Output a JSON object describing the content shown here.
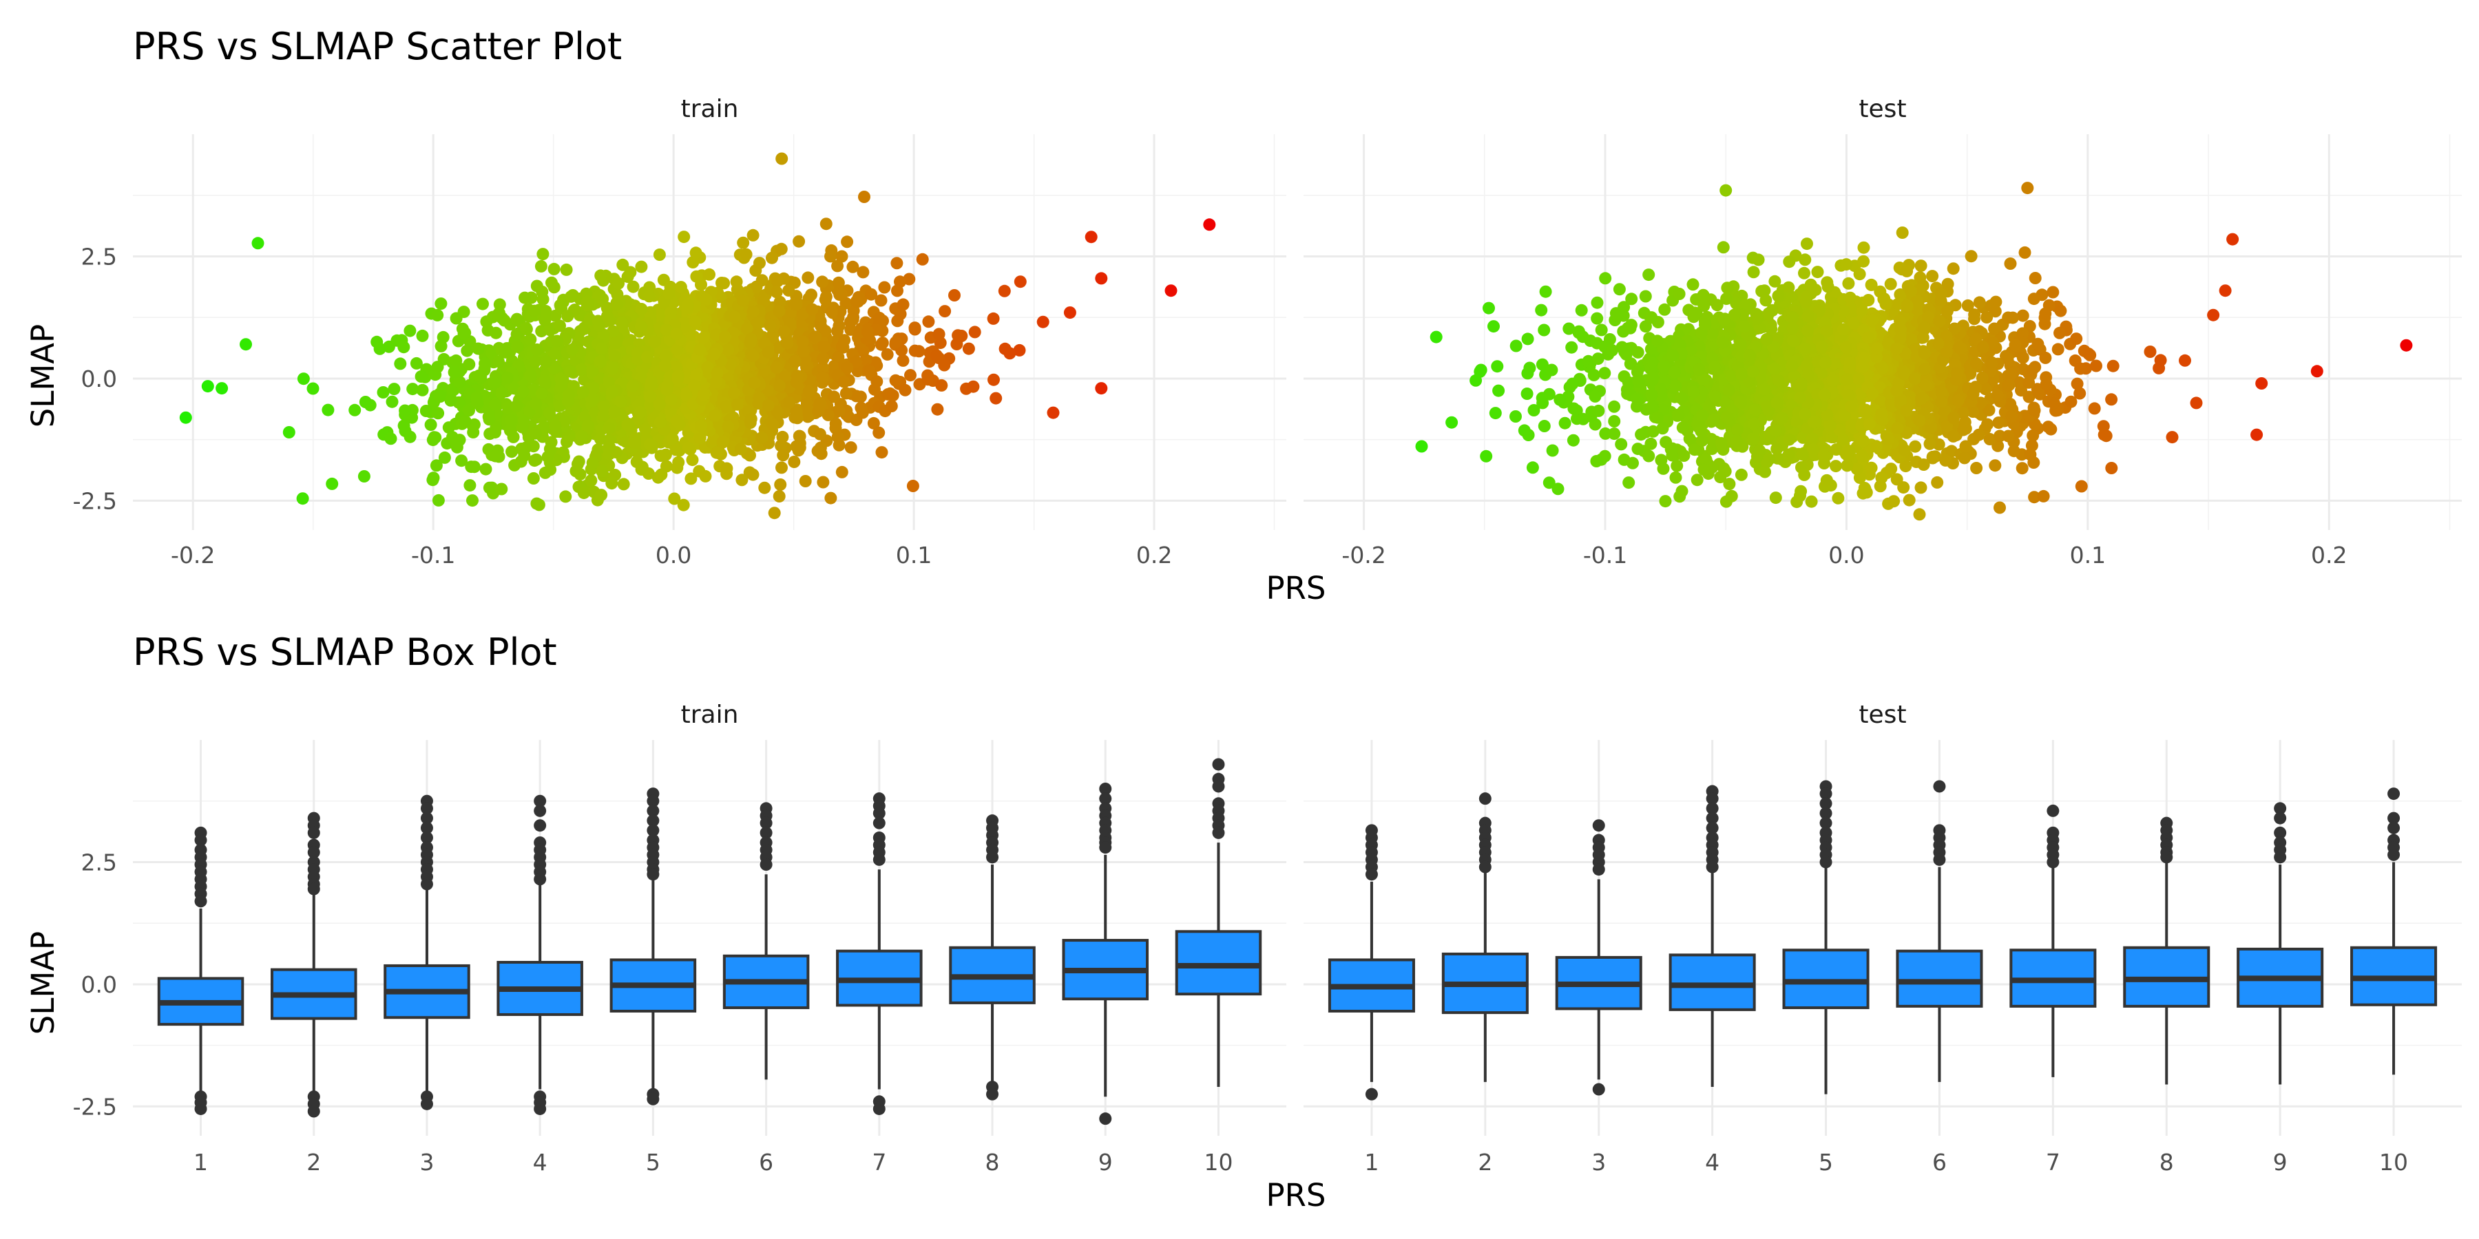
{
  "chart_data": [
    {
      "type": "scatter",
      "title": "PRS vs SLMAP Scatter Plot",
      "xlabel": "PRS",
      "ylabel": "SLMAP",
      "facets": [
        "train",
        "test"
      ],
      "xlim": [
        -0.225,
        0.255
      ],
      "ylim": [
        -3.1,
        5.0
      ],
      "x_ticks": [
        -0.2,
        -0.1,
        0.0,
        0.1,
        0.2
      ],
      "x_tick_labels": [
        "-0.2",
        "-0.1",
        "0.0",
        "0.1",
        "0.2"
      ],
      "y_ticks": [
        -2.5,
        0,
        2.5
      ],
      "y_tick_labels": [
        "-2.5",
        "0.0",
        "2.5"
      ],
      "grid": true,
      "legend": "none",
      "color_scale": {
        "low": "#22ee00",
        "mid": "#bbbb00",
        "high": "#ee0000"
      },
      "cloud": {
        "train": {
          "center_x": 0.0,
          "sd_x": 0.048,
          "center_y": 0.15,
          "sd_y": 0.95,
          "slope": 6.5
        },
        "test": {
          "center_x": -0.01,
          "sd_x": 0.046,
          "center_y": 0.0,
          "sd_y": 0.9,
          "slope": 0.6
        }
      },
      "outliers": {
        "train": [
          [
            -0.203,
            -0.8
          ],
          [
            -0.173,
            2.77
          ],
          [
            -0.178,
            0.7
          ],
          [
            -0.188,
            -0.2
          ],
          [
            -0.16,
            -1.1
          ],
          [
            0.223,
            3.15
          ],
          [
            0.207,
            1.8
          ],
          [
            0.178,
            2.05
          ],
          [
            0.178,
            -0.2
          ],
          [
            0.045,
            4.5
          ],
          [
            0.042,
            -2.75
          ],
          [
            0.165,
            1.35
          ],
          [
            0.158,
            -0.7
          ]
        ],
        "test": [
          [
            0.232,
            0.68
          ],
          [
            0.195,
            0.15
          ],
          [
            0.172,
            -0.1
          ],
          [
            0.17,
            -1.15
          ],
          [
            0.16,
            2.85
          ],
          [
            0.157,
            1.8
          ],
          [
            0.152,
            1.3
          ],
          [
            -0.17,
            0.85
          ],
          [
            0.075,
            3.9
          ],
          [
            -0.05,
            3.85
          ],
          [
            0.135,
            -1.2
          ],
          [
            0.145,
            -0.5
          ]
        ]
      }
    },
    {
      "type": "box",
      "title": "PRS vs SLMAP Box Plot",
      "xlabel": "PRS",
      "ylabel": "SLMAP",
      "facets": [
        "train",
        "test"
      ],
      "categories": [
        "1",
        "2",
        "3",
        "4",
        "5",
        "6",
        "7",
        "8",
        "9",
        "10"
      ],
      "ylim": [
        -3.1,
        5.0
      ],
      "y_ticks": [
        -2.5,
        0,
        2.5
      ],
      "y_tick_labels": [
        "-2.5",
        "0.0",
        "2.5"
      ],
      "grid": true,
      "fill_color": "#1e90ff",
      "line_color": "#333333",
      "boxes": {
        "train": [
          {
            "q1": -0.82,
            "median": -0.38,
            "q3": 0.12,
            "whisker_low": -2.2,
            "whisker_high": 1.55,
            "outliers": [
              3.1,
              2.95,
              2.75,
              2.6,
              2.45,
              2.3,
              2.15,
              2.0,
              1.85,
              1.7,
              -2.3,
              -2.42,
              -2.55
            ]
          },
          {
            "q1": -0.7,
            "median": -0.22,
            "q3": 0.3,
            "whisker_low": -2.2,
            "whisker_high": 1.85,
            "outliers": [
              3.4,
              3.25,
              3.1,
              2.85,
              2.7,
              2.5,
              2.35,
              2.2,
              2.05,
              1.95,
              -2.3,
              -2.45,
              -2.6
            ]
          },
          {
            "q1": -0.68,
            "median": -0.15,
            "q3": 0.38,
            "whisker_low": -2.2,
            "whisker_high": 1.95,
            "outliers": [
              3.75,
              3.6,
              3.4,
              3.2,
              3.0,
              2.8,
              2.65,
              2.5,
              2.35,
              2.2,
              2.05,
              -2.3,
              -2.45
            ]
          },
          {
            "q1": -0.62,
            "median": -0.1,
            "q3": 0.45,
            "whisker_low": -2.15,
            "whisker_high": 2.05,
            "outliers": [
              3.75,
              3.55,
              3.25,
              2.9,
              2.75,
              2.6,
              2.45,
              2.3,
              2.15,
              -2.3,
              -2.42,
              -2.55
            ]
          },
          {
            "q1": -0.55,
            "median": -0.02,
            "q3": 0.5,
            "whisker_low": -2.2,
            "whisker_high": 2.15,
            "outliers": [
              3.9,
              3.75,
              3.55,
              3.35,
              3.15,
              2.95,
              2.8,
              2.65,
              2.5,
              2.35,
              2.25,
              -2.25,
              -2.35
            ]
          },
          {
            "q1": -0.48,
            "median": 0.05,
            "q3": 0.58,
            "whisker_low": -1.95,
            "whisker_high": 2.25,
            "outliers": [
              3.6,
              3.45,
              3.3,
              3.1,
              2.9,
              2.75,
              2.6,
              2.45
            ]
          },
          {
            "q1": -0.43,
            "median": 0.08,
            "q3": 0.68,
            "whisker_low": -2.15,
            "whisker_high": 2.35,
            "outliers": [
              3.8,
              3.65,
              3.5,
              3.3,
              3.0,
              2.85,
              2.7,
              2.55,
              -2.4,
              -2.55
            ]
          },
          {
            "q1": -0.38,
            "median": 0.15,
            "q3": 0.75,
            "whisker_low": -2.0,
            "whisker_high": 2.45,
            "outliers": [
              3.35,
              3.2,
              3.05,
              2.9,
              2.75,
              2.6,
              -2.1,
              -2.25
            ]
          },
          {
            "q1": -0.3,
            "median": 0.28,
            "q3": 0.9,
            "whisker_low": -2.3,
            "whisker_high": 2.65,
            "outliers": [
              4.0,
              3.8,
              3.6,
              3.45,
              3.3,
              3.15,
              3.0,
              2.9,
              2.8,
              -2.75
            ]
          },
          {
            "q1": -0.2,
            "median": 0.38,
            "q3": 1.08,
            "whisker_low": -2.1,
            "whisker_high": 2.9,
            "outliers": [
              4.5,
              4.2,
              4.05,
              3.7,
              3.55,
              3.4,
              3.25,
              3.1
            ]
          }
        ],
        "test": [
          {
            "q1": -0.55,
            "median": -0.05,
            "q3": 0.5,
            "whisker_low": -2.0,
            "whisker_high": 2.1,
            "outliers": [
              3.15,
              3.0,
              2.85,
              2.7,
              2.55,
              2.4,
              2.25,
              -2.25
            ]
          },
          {
            "q1": -0.58,
            "median": 0.0,
            "q3": 0.62,
            "whisker_low": -2.0,
            "whisker_high": 2.3,
            "outliers": [
              3.8,
              3.3,
              3.15,
              3.0,
              2.85,
              2.7,
              2.55,
              2.4
            ]
          },
          {
            "q1": -0.5,
            "median": 0.0,
            "q3": 0.55,
            "whisker_low": -1.95,
            "whisker_high": 2.15,
            "outliers": [
              3.25,
              2.95,
              2.8,
              2.65,
              2.5,
              2.35,
              -2.15
            ]
          },
          {
            "q1": -0.52,
            "median": -0.02,
            "q3": 0.6,
            "whisker_low": -2.1,
            "whisker_high": 2.35,
            "outliers": [
              3.95,
              3.8,
              3.6,
              3.4,
              3.2,
              3.0,
              2.85,
              2.7,
              2.55,
              2.4
            ]
          },
          {
            "q1": -0.48,
            "median": 0.05,
            "q3": 0.7,
            "whisker_low": -2.25,
            "whisker_high": 2.45,
            "outliers": [
              4.05,
              3.9,
              3.7,
              3.5,
              3.3,
              3.1,
              2.95,
              2.8,
              2.65,
              2.5
            ]
          },
          {
            "q1": -0.45,
            "median": 0.05,
            "q3": 0.68,
            "whisker_low": -2.0,
            "whisker_high": 2.4,
            "outliers": [
              4.05,
              3.15,
              3.0,
              2.85,
              2.7,
              2.55
            ]
          },
          {
            "q1": -0.45,
            "median": 0.08,
            "q3": 0.7,
            "whisker_low": -1.9,
            "whisker_high": 2.4,
            "outliers": [
              3.55,
              3.1,
              2.95,
              2.8,
              2.65,
              2.5
            ]
          },
          {
            "q1": -0.45,
            "median": 0.1,
            "q3": 0.75,
            "whisker_low": -2.05,
            "whisker_high": 2.5,
            "outliers": [
              3.3,
              3.15,
              3.0,
              2.85,
              2.7,
              2.6
            ]
          },
          {
            "q1": -0.45,
            "median": 0.12,
            "q3": 0.72,
            "whisker_low": -2.05,
            "whisker_high": 2.45,
            "outliers": [
              3.6,
              3.4,
              3.1,
              2.9,
              2.75,
              2.6
            ]
          },
          {
            "q1": -0.42,
            "median": 0.12,
            "q3": 0.75,
            "whisker_low": -1.85,
            "whisker_high": 2.5,
            "outliers": [
              3.9,
              3.4,
              3.2,
              2.95,
              2.8,
              2.65
            ]
          }
        ]
      }
    }
  ]
}
